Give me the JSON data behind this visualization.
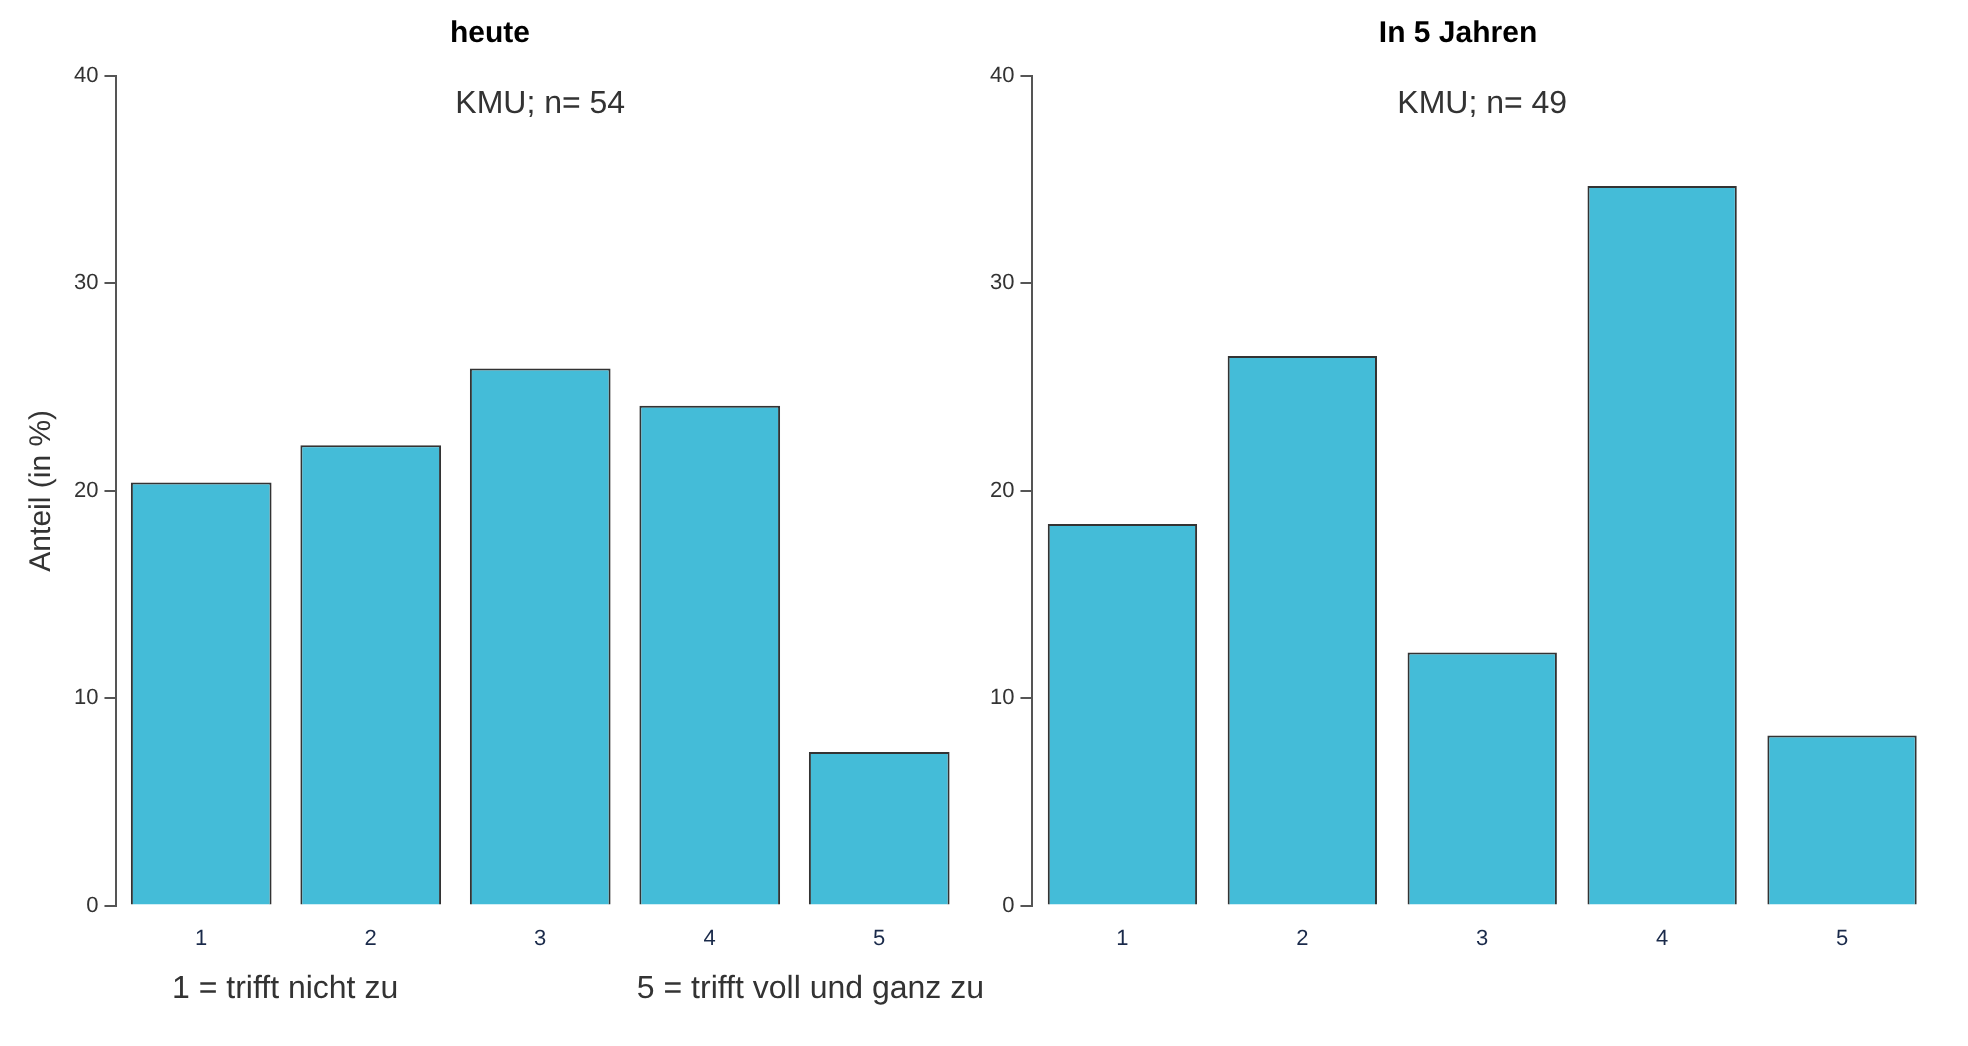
{
  "chart_data": [
    {
      "type": "bar",
      "title": "heute",
      "ylabel": "Anteil (in %)",
      "categories": [
        "1",
        "2",
        "3",
        "4",
        "5"
      ],
      "values": [
        20.4,
        22.2,
        25.9,
        24.1,
        7.4
      ],
      "color": "#44bcd8",
      "ylim": [
        0,
        40
      ],
      "yticks": [
        0,
        10,
        20,
        30,
        40
      ],
      "grid": false,
      "legend": false,
      "annotations": [
        "KMU; n= 54",
        "1 = trifft nicht zu",
        "5 = trifft voll und ganz zu"
      ]
    },
    {
      "type": "bar",
      "title": "In 5 Jahren",
      "categories": [
        "1",
        "2",
        "3",
        "4",
        "5"
      ],
      "values": [
        18.4,
        26.5,
        12.2,
        34.7,
        8.2
      ],
      "color": "#44bcd8",
      "ylim": [
        0,
        40
      ],
      "yticks": [
        0,
        10,
        20,
        30,
        40
      ],
      "grid": false,
      "legend": false,
      "annotations": [
        "KMU; n= 49"
      ]
    }
  ]
}
